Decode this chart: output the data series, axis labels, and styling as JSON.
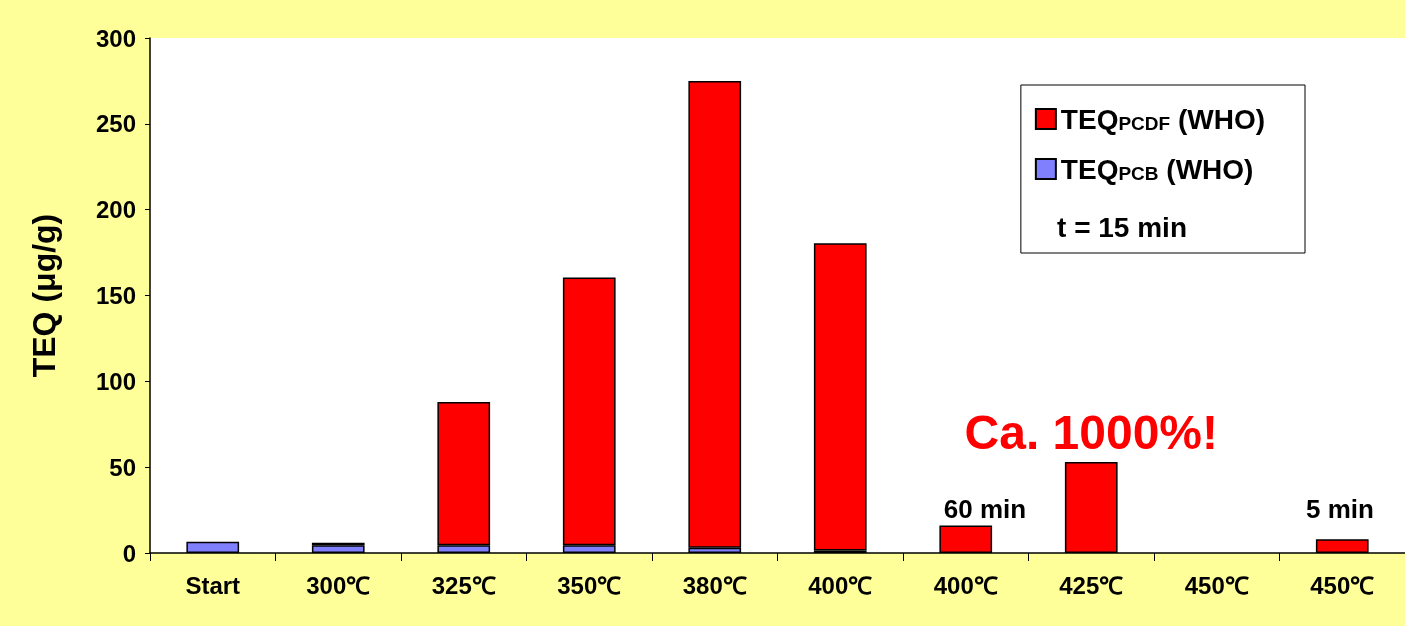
{
  "chart_data": {
    "type": "bar",
    "stacked": true,
    "ylabel": "TEQ (μg/g)",
    "categories": [
      "Start",
      "300℃",
      "325℃",
      "350℃",
      "380℃",
      "400℃",
      "400℃",
      "425℃",
      "450℃",
      "450℃"
    ],
    "series": [
      {
        "name": "TEQ$_{PCB}$ (WHO)",
        "color": "#8080ff",
        "values": [
          6.5,
          4.5,
          4.5,
          4.5,
          3,
          1.5,
          null,
          null,
          null,
          null
        ]
      },
      {
        "name": "TEQ$_{PCDF}$ (WHO)",
        "color": "#ff0000",
        "values": [
          null,
          1.5,
          83.5,
          156,
          272,
          179,
          16,
          53,
          null,
          8
        ]
      }
    ],
    "ylim": [
      0,
      300
    ],
    "yticks": [
      0,
      50,
      100,
      150,
      200,
      250,
      300
    ],
    "grid": false,
    "legend": "top right",
    "annotations": [
      "t = 15 min",
      {
        "text": "Ca. 1000%!",
        "x": "425℃",
        "y": 53
      },
      "60 min",
      "5 min"
    ]
  }
}
